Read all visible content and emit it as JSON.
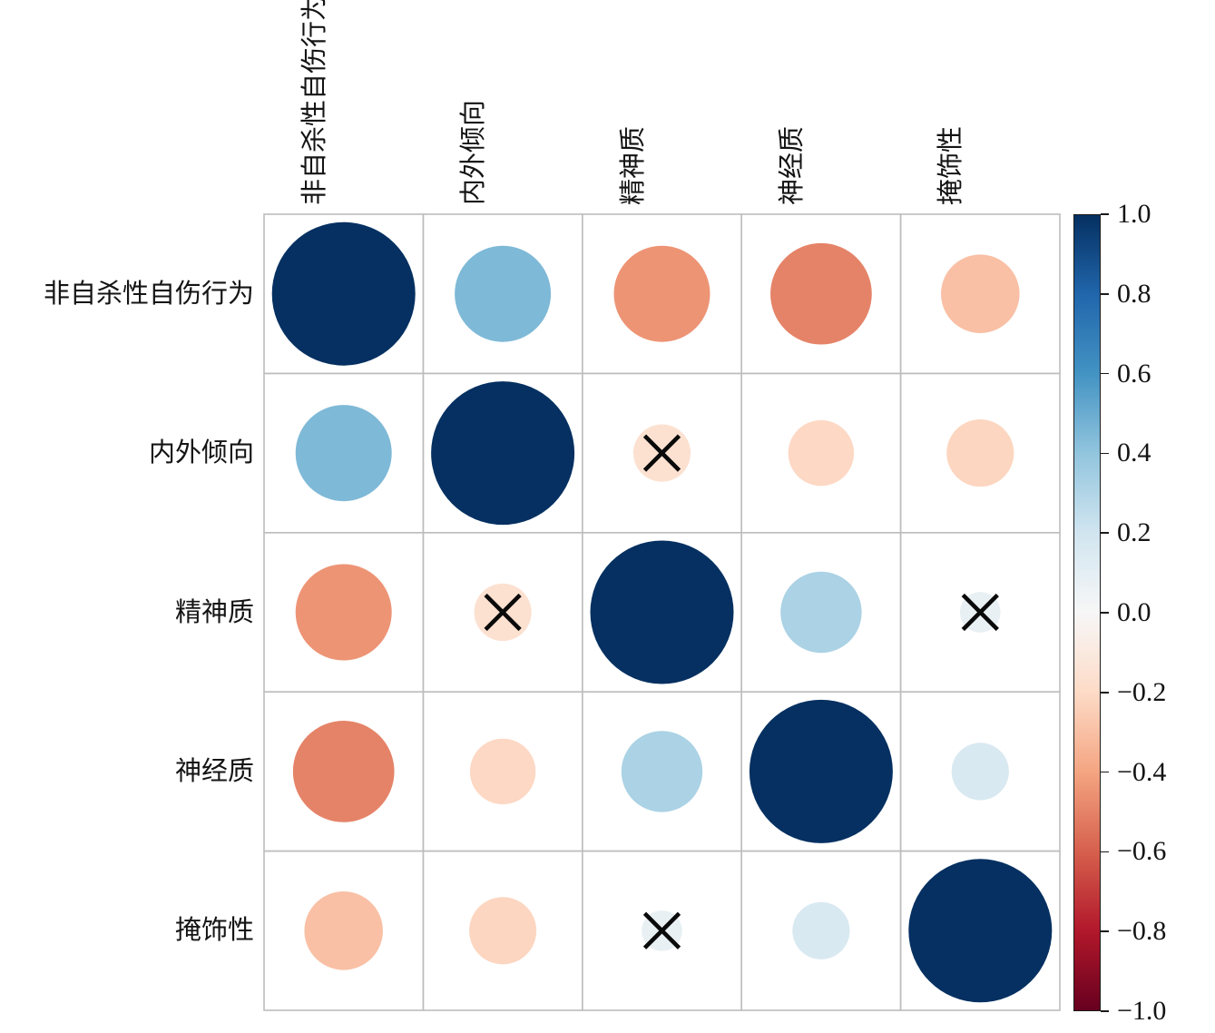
{
  "figure": {
    "background_color": "#ffffff",
    "kind": "correlation matrix bubble plot"
  },
  "chart_data": {
    "type": "heatmap",
    "subtype": "correlation-circles",
    "title": "",
    "variables": [
      "非自杀性自伤行为",
      "内外倾向",
      "精神质",
      "神经质",
      "掩饰性"
    ],
    "matrix": [
      [
        1.0,
        0.45,
        -0.45,
        -0.5,
        -0.3
      ],
      [
        0.45,
        1.0,
        -0.16,
        -0.21,
        -0.22
      ],
      [
        -0.45,
        -0.16,
        1.0,
        0.32,
        0.08
      ],
      [
        -0.5,
        -0.21,
        0.32,
        1.0,
        0.16
      ],
      [
        -0.3,
        -0.22,
        0.08,
        0.16,
        1.0
      ]
    ],
    "not_significant_cells": [
      [
        1,
        2
      ],
      [
        2,
        1
      ],
      [
        2,
        4
      ],
      [
        4,
        2
      ]
    ],
    "significance_marker": "X",
    "size_encoding": "circle area proportional to |r|",
    "grid": {
      "rows": 5,
      "cols": 5,
      "line_color": "#bdbdbd",
      "show": true
    },
    "palette_name": "RdBu",
    "palette_stops": [
      {
        "v": -1.0,
        "c": "#67001f"
      },
      {
        "v": -0.8,
        "c": "#b2182b"
      },
      {
        "v": -0.6,
        "c": "#d6604d"
      },
      {
        "v": -0.4,
        "c": "#f4a582"
      },
      {
        "v": -0.2,
        "c": "#fddbc7"
      },
      {
        "v": 0.0,
        "c": "#f7f7f7"
      },
      {
        "v": 0.2,
        "c": "#d1e5f0"
      },
      {
        "v": 0.4,
        "c": "#92c5de"
      },
      {
        "v": 0.6,
        "c": "#4393c3"
      },
      {
        "v": 0.8,
        "c": "#2166ac"
      },
      {
        "v": 1.0,
        "c": "#053061"
      }
    ],
    "colorbar": {
      "orientation": "vertical",
      "position": "right",
      "min": -1.0,
      "max": 1.0,
      "tick_step": 0.2,
      "tick_values": [
        1.0,
        0.8,
        0.6,
        0.4,
        0.2,
        0.0,
        -0.2,
        -0.4,
        -0.6,
        -0.8,
        -1.0
      ],
      "tick_labels": [
        "1.0",
        "0.8",
        "0.6",
        "0.4",
        "0.2",
        "0.0",
        "−0.2",
        "−0.4",
        "−0.6",
        "−0.8",
        "−1.0"
      ]
    },
    "marker_color": "#0a0a0a"
  }
}
